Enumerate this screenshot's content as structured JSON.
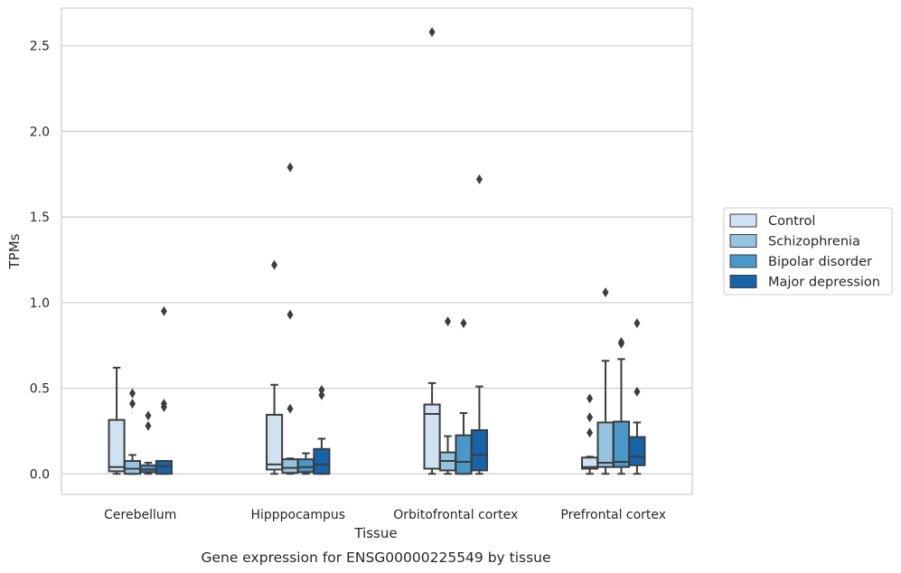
{
  "caption": "Gene expression for ENSG00000225549 by tissue",
  "chart_data": {
    "type": "box",
    "xlabel": "Tissue",
    "ylabel": "TPMs",
    "ylim": [
      -0.12,
      2.72
    ],
    "yticks": [
      "0.0",
      "0.5",
      "1.0",
      "1.5",
      "2.0",
      "2.5"
    ],
    "grid": "horizontal",
    "legend_position": "right",
    "categories": [
      "Cerebellum",
      "Hipppocampus",
      "Orbitofrontal cortex",
      "Prefrontal cortex"
    ],
    "series": [
      {
        "name": "Control",
        "color": "#d0e1f2",
        "boxes": [
          {
            "whislo": 0.0,
            "q1": 0.015,
            "med": 0.04,
            "q3": 0.315,
            "whishi": 0.62,
            "fliers": []
          },
          {
            "whislo": 0.0,
            "q1": 0.025,
            "med": 0.055,
            "q3": 0.345,
            "whishi": 0.52,
            "fliers": [
              1.22
            ]
          },
          {
            "whislo": 0.0,
            "q1": 0.03,
            "med": 0.35,
            "q3": 0.405,
            "whishi": 0.53,
            "fliers": [
              2.58
            ]
          },
          {
            "whislo": 0.0,
            "q1": 0.03,
            "med": 0.04,
            "q3": 0.095,
            "whishi": 0.1,
            "fliers": [
              0.24,
              0.33,
              0.44
            ]
          }
        ]
      },
      {
        "name": "Schizophrenia",
        "color": "#94c4df",
        "boxes": [
          {
            "whislo": 0.0,
            "q1": 0.0,
            "med": 0.03,
            "q3": 0.075,
            "whishi": 0.11,
            "fliers": [
              0.41,
              0.47
            ]
          },
          {
            "whislo": 0.0,
            "q1": 0.005,
            "med": 0.035,
            "q3": 0.085,
            "whishi": 0.09,
            "fliers": [
              0.38,
              0.93,
              1.79
            ]
          },
          {
            "whislo": 0.0,
            "q1": 0.02,
            "med": 0.075,
            "q3": 0.125,
            "whishi": 0.22,
            "fliers": [
              0.89
            ]
          },
          {
            "whislo": 0.0,
            "q1": 0.04,
            "med": 0.065,
            "q3": 0.3,
            "whishi": 0.66,
            "fliers": [
              1.06
            ]
          }
        ]
      },
      {
        "name": "Bipolar disorder",
        "color": "#4a98c9",
        "boxes": [
          {
            "whislo": 0.0,
            "q1": 0.01,
            "med": 0.025,
            "q3": 0.05,
            "whishi": 0.065,
            "fliers": [
              0.28,
              0.34
            ]
          },
          {
            "whislo": 0.0,
            "q1": 0.01,
            "med": 0.04,
            "q3": 0.085,
            "whishi": 0.12,
            "fliers": []
          },
          {
            "whislo": 0.0,
            "q1": 0.0,
            "med": 0.07,
            "q3": 0.225,
            "whishi": 0.355,
            "fliers": [
              0.88
            ]
          },
          {
            "whislo": 0.0,
            "q1": 0.04,
            "med": 0.07,
            "q3": 0.305,
            "whishi": 0.67,
            "fliers": [
              0.76,
              0.77
            ]
          }
        ]
      },
      {
        "name": "Major depression",
        "color": "#1764ab",
        "boxes": [
          {
            "whislo": 0.0,
            "q1": 0.0,
            "med": 0.045,
            "q3": 0.075,
            "whishi": 0.075,
            "fliers": [
              0.39,
              0.41,
              0.95
            ]
          },
          {
            "whislo": 0.0,
            "q1": 0.0,
            "med": 0.055,
            "q3": 0.145,
            "whishi": 0.205,
            "fliers": [
              0.46,
              0.49
            ]
          },
          {
            "whislo": 0.0,
            "q1": 0.02,
            "med": 0.11,
            "q3": 0.255,
            "whishi": 0.51,
            "fliers": [
              1.72
            ]
          },
          {
            "whislo": 0.0,
            "q1": 0.05,
            "med": 0.1,
            "q3": 0.215,
            "whishi": 0.3,
            "fliers": [
              0.48,
              0.88
            ]
          }
        ]
      }
    ]
  }
}
